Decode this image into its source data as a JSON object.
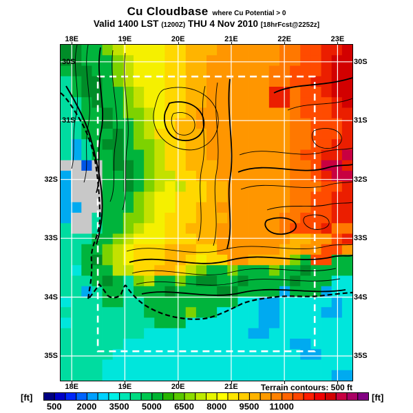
{
  "header": {
    "title_main": "Cu Cloudbase",
    "title_qualifier": "where Cu Potential > 0",
    "valid_prefix": "Valid 1400 LST",
    "valid_zulu": "(1200Z)",
    "valid_date": "THU 4 Nov 2010",
    "valid_fcst": "[18hrFcst@2252z]"
  },
  "footer": {
    "terrain_note": "Terrain contours: 500 ft",
    "unit_left": "[ft]",
    "unit_right": "[ft]"
  },
  "chart_data": {
    "type": "heatmap",
    "title": "Cu Cloudbase where Cu Potential > 0",
    "valid_line": "Valid 1400 LST (1200Z) THU 4 Nov 2010 [18hrFcst@2252z]",
    "units": "ft",
    "terrain_contours_interval_ft": 500,
    "x_axis": {
      "min": 17.79,
      "max": 23.28,
      "ticks": [
        {
          "v": 18,
          "label": "18E",
          "bottom": true
        },
        {
          "v": 19,
          "label": "19E",
          "bottom": true
        },
        {
          "v": 20,
          "label": "20E",
          "bottom": true
        },
        {
          "v": 21,
          "label": "21E",
          "bottom": true
        },
        {
          "v": 22,
          "label": "22E",
          "bottom": false
        },
        {
          "v": 23,
          "label": "23E",
          "bottom": false
        }
      ]
    },
    "y_axis": {
      "min": 29.71,
      "max": 35.42,
      "ticks": [
        {
          "v": 30,
          "label": "30S",
          "inside": true
        },
        {
          "v": 31,
          "label": "31S",
          "inside": true
        },
        {
          "v": 32,
          "label": "32S",
          "inside": false
        },
        {
          "v": 33,
          "label": "33S",
          "inside": false
        },
        {
          "v": 34,
          "label": "34S",
          "inside": false
        },
        {
          "v": 35,
          "label": "35S",
          "inside": false
        }
      ]
    },
    "inner_domain": {
      "lon_min": 18.49,
      "lon_max": 22.57,
      "lat_min": 30.25,
      "lat_max": 34.92
    },
    "grid": {
      "cols": 28,
      "rows": 32,
      "palette": {
        "n": "#0055E6",
        "b": "#00AAF0",
        "c": "#00E6DC",
        "t": "#00DCA0",
        "k": "#C8C8C8",
        "G": "#008C28",
        "g": "#00B43C",
        "v": "#7DD200",
        "y": "#C3E100",
        "Y": "#F5F000",
        "d": "#FFD800",
        "o": "#FFB400",
        "O": "#FF9600",
        "p": "#FF7800",
        "r": "#FF4B00",
        "R": "#EB1E00",
        "B": "#D20000",
        "C": "#C80041"
      },
      "rows_data": [
        "GGggvyYYYYddoooOOOOOOpprrRRB",
        "GGgggvyYYYddooOOOOOOOpprrRBB",
        "gGGggvyYYYddooOOOOOOpprrrRBB",
        "tgGGgvyYYYddooOOOOOOpprrRRBB",
        "tgGGggvyYYddooOOOOOORRprrRBB",
        "ttgGggvyYYddooOOOOOORRprrrRB",
        "ttggGgvvyYddoOOOOOOOOOprrrRR",
        "ttggGggvyYdooOOOOOOOOOpprrrR",
        "ttgggGgvyddoooOOOOOOOOpprrrR",
        "tbtgGGgvvyddooOOOOOOOOpprrRR",
        "tbtggGggvyddooOOOOOOOOprrRRC",
        "kknkgGGgvyddoooOOOOOOOpprCCR",
        "bkkkggGgvyyddooOOOOOOOpprRCC",
        "bkkkggGgvyYyddooOOOOOOppprrR",
        "bkkkgggvyYYdddooOOOOOOpprrRR",
        "bbkkgggvyYYddooOOOOOOOpprrRR",
        "bkktggvvyYdddoooOOOOOpprrrRR",
        "tkktggvyYYddoooOOOOOOprrrRpp",
        "tttggvyYYYdddooOOOOOOOooOOrR",
        "ttggvyYdddoooddOOOOOOooOOrrO",
        "ttgGvyYdddoodYddOOoooovgrrgg",
        "tcgggyyddoodyvggvgggvggGgggg",
        "tttgGgtvyggvgGGggGggggGgggcc",
        "ttbtggtgggGggggGGggggbgggbcc",
        "ctttggttgggggggggccbbcccccbc",
        "ttttttttggggvggccccbbccccbbc",
        "cttttttttgggcccccccbbccccccc",
        "ttttttttccccccccccbbcccccccc",
        "ttttttccccccccccccccccbbcccc",
        "tttttccccccccccccccccccbbccc",
        "ttttcccccccccccccccccccccccc",
        "ttttccccccccccccccccccccccbb"
      ]
    },
    "colorbar": {
      "min": 0,
      "max": 15000,
      "segment_ft": 500,
      "tick_values": [
        500,
        2000,
        3500,
        5000,
        6500,
        8000,
        9500,
        11000
      ],
      "colors": [
        "#000082",
        "#0000C8",
        "#0028FA",
        "#0064FF",
        "#00A0FF",
        "#00D2FF",
        "#00F0E6",
        "#00E6B4",
        "#00DC82",
        "#00C850",
        "#00B432",
        "#28B400",
        "#5AC800",
        "#8CDC00",
        "#BEEB00",
        "#E6F500",
        "#FFFF00",
        "#FFE600",
        "#FFCD00",
        "#FFB400",
        "#FF9B00",
        "#FF8200",
        "#FF6400",
        "#FF4600",
        "#FF1E00",
        "#F00000",
        "#D20000",
        "#C80041",
        "#AA0064",
        "#820082"
      ]
    }
  }
}
